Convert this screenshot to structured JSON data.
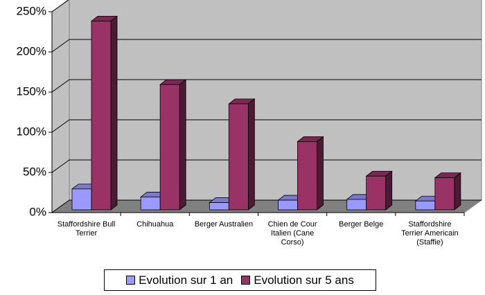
{
  "chart_data": {
    "type": "bar3d",
    "categories": [
      "Staffordshire Bull Terrier",
      "Chihuahua",
      "Berger Australien",
      "Chien de Cour Italien (Cane Corso)",
      "Berger Belge",
      "Staffordshire Terrier Americain (Staffie)"
    ],
    "series": [
      {
        "name": "Evolution sur 1 an",
        "color": "#9999ff",
        "values": [
          26,
          16,
          9,
          12,
          13,
          11
        ]
      },
      {
        "name": "Evolution sur 5 ans",
        "color": "#993366",
        "values": [
          235,
          156,
          132,
          85,
          42,
          40
        ]
      }
    ],
    "ylim": [
      0,
      250
    ],
    "yticks": [
      {
        "value": 0,
        "label": "0%"
      },
      {
        "value": 50,
        "label": "50%"
      },
      {
        "value": 100,
        "label": "100%"
      },
      {
        "value": 150,
        "label": "150%"
      },
      {
        "value": 200,
        "label": "200%"
      },
      {
        "value": 250,
        "label": "250%"
      }
    ],
    "grid": true
  }
}
